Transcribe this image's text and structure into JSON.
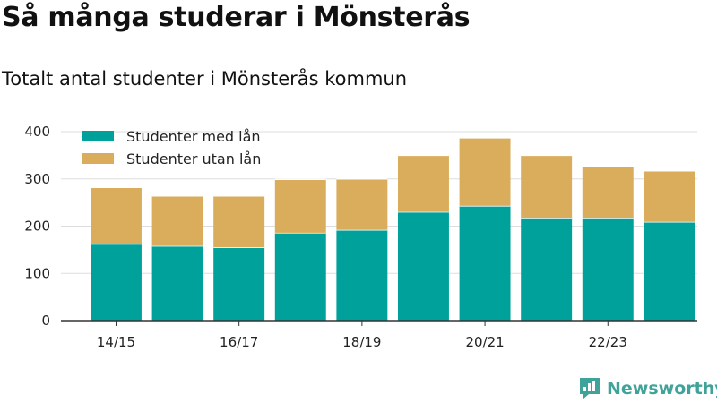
{
  "header": {
    "title": "Så många studerar i Mönsterås",
    "subtitle": "Totalt antal studenter i Mönsterås kommun"
  },
  "brand": {
    "name": "Newsworthy"
  },
  "colors": {
    "with_loan": "#00a19a",
    "without_loan": "#d9ad5b",
    "grid": "#dddddd",
    "axis": "#333333"
  },
  "chart_data": {
    "type": "bar",
    "stacked": true,
    "categories": [
      "14/15",
      "15/16",
      "16/17",
      "17/18",
      "18/19",
      "19/20",
      "20/21",
      "21/22",
      "22/23",
      "23/24"
    ],
    "x_tick_labels": [
      "14/15",
      "",
      "16/17",
      "",
      "18/19",
      "",
      "20/21",
      "",
      "22/23",
      ""
    ],
    "series": [
      {
        "name": "Studenter med lån",
        "values": [
          162,
          158,
          155,
          186,
          192,
          230,
          243,
          218,
          218,
          209
        ]
      },
      {
        "name": "Studenter utan lån",
        "values": [
          120,
          106,
          109,
          113,
          108,
          120,
          144,
          132,
          108,
          108
        ]
      }
    ],
    "ylim": [
      0,
      400
    ],
    "y_ticks": [
      0,
      100,
      200,
      300,
      400
    ],
    "grid": true,
    "legend_position": "top-left"
  }
}
